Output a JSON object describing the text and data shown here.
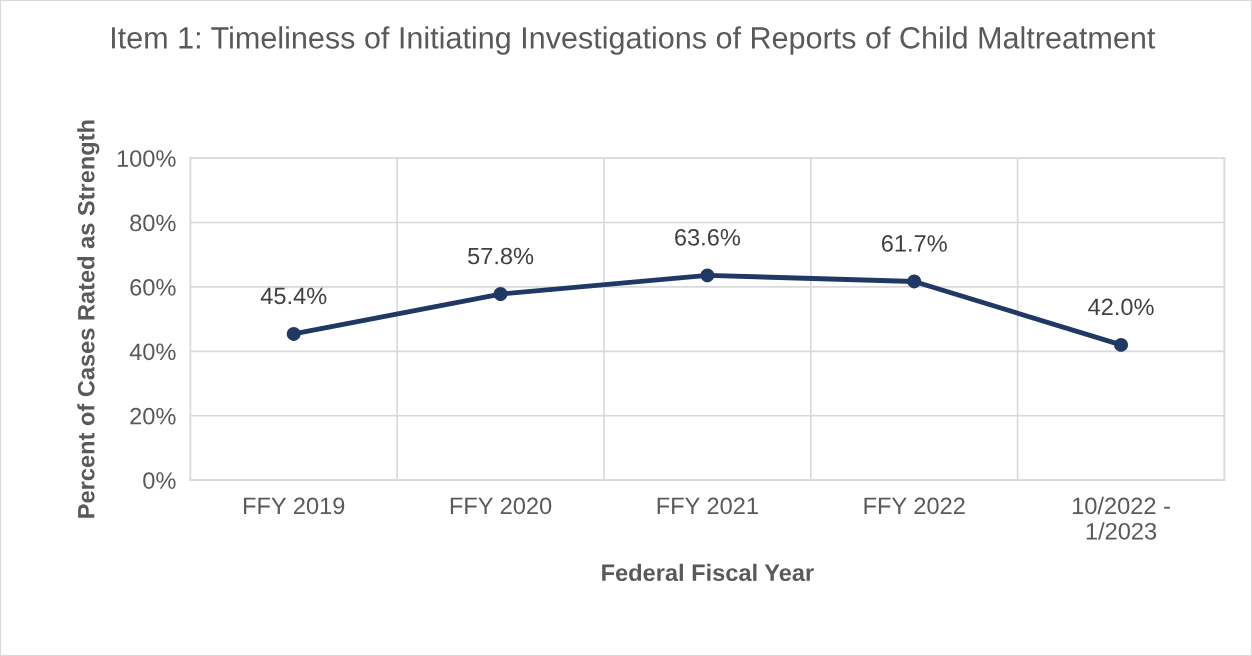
{
  "chart_data": {
    "type": "line",
    "title": "Item 1: Timeliness of Initiating Investigations of Reports of Child Maltreatment",
    "xlabel": "Federal Fiscal Year",
    "ylabel": "Percent of Cases Rated as Strength",
    "categories": [
      "FFY 2019",
      "FFY 2020",
      "FFY 2021",
      "FFY 2022",
      "10/2022 - 1/2023"
    ],
    "series": [
      {
        "color": "#203864",
        "values": [
          45.4,
          57.8,
          63.6,
          61.7,
          42.0
        ],
        "value_labels": [
          "45.4%",
          "57.8%",
          "63.6%",
          "61.7%",
          "42.0%"
        ]
      }
    ],
    "ylim": [
      0,
      100
    ],
    "yticks": [
      {
        "value": 0,
        "label": "0%"
      },
      {
        "value": 20,
        "label": "20%"
      },
      {
        "value": 40,
        "label": "40%"
      },
      {
        "value": 60,
        "label": "60%"
      },
      {
        "value": 80,
        "label": "80%"
      },
      {
        "value": 100,
        "label": "100%"
      }
    ],
    "grid": true,
    "marker": "circle",
    "line_style": "solid",
    "legend": false
  }
}
